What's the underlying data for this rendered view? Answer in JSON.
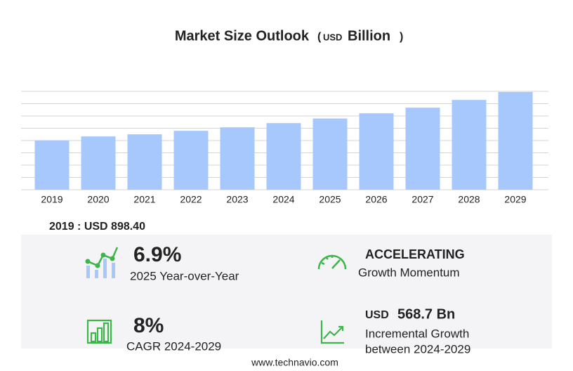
{
  "chart_data": {
    "type": "bar",
    "title": "Market Size Outlook",
    "title_unit": [
      "(",
      "USD",
      "Billion",
      ")"
    ],
    "categories": [
      "2019",
      "2020",
      "2021",
      "2022",
      "2023",
      "2024",
      "2025",
      "2026",
      "2027",
      "2028",
      "2029"
    ],
    "values": [
      898.4,
      975,
      1014,
      1078,
      1142,
      1219,
      1303,
      1399,
      1502,
      1643,
      1788
    ],
    "color": "#a6c8fc",
    "ylim": [
      0,
      1800
    ],
    "yticks": [
      0,
      225,
      450,
      675,
      900,
      1125,
      1350,
      1575,
      1800
    ],
    "grid": true
  },
  "highlights": {
    "base": "2019 : USD  898.40",
    "yoy": {
      "value": "6.9%",
      "label": "2025 Year-over-Year"
    },
    "momentum": {
      "value": "ACCELERATING",
      "label": "Growth Momentum"
    },
    "cagr": {
      "value": "8%",
      "label": "CAGR 2024-2029"
    },
    "incremental": {
      "unit": "USD",
      "value": "568.7 Bn",
      "label": [
        "Incremental Growth",
        "between 2024-2029"
      ]
    }
  },
  "footer": "www.technavio.com"
}
